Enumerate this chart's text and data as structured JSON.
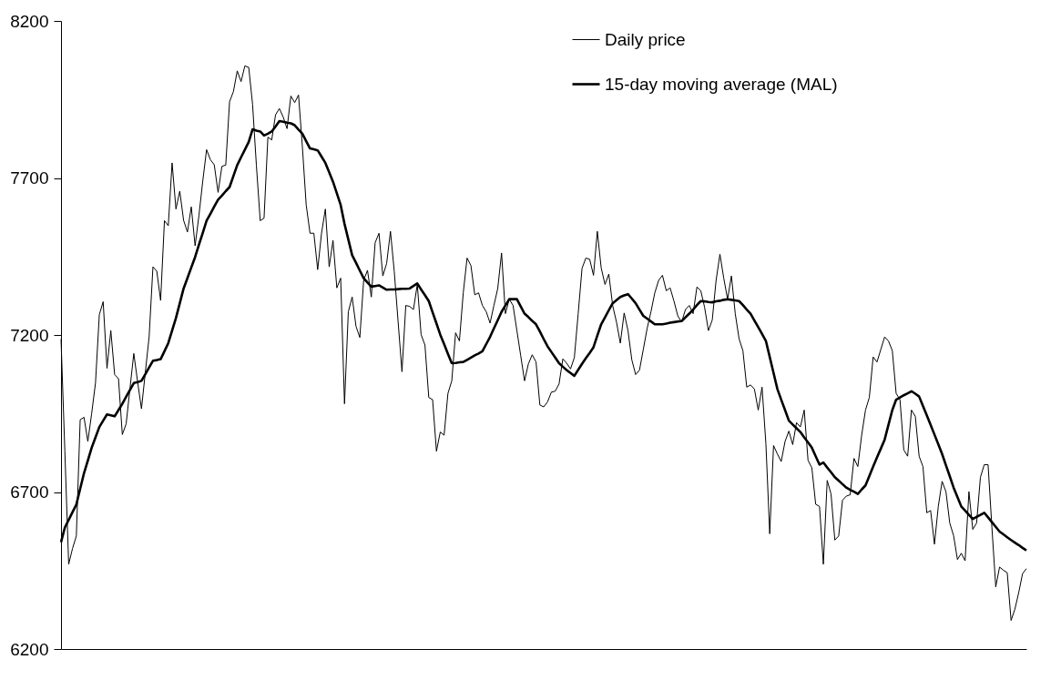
{
  "chart_data": {
    "type": "line",
    "categories": [
      null,
      null,
      null,
      null,
      null,
      null,
      null,
      null,
      null,
      null,
      null,
      null,
      null,
      null,
      null,
      null,
      null,
      null,
      null,
      null,
      null,
      null,
      null,
      null,
      null,
      null,
      null,
      null,
      null,
      null,
      null,
      null,
      null,
      null,
      null,
      null,
      null,
      null,
      null,
      null,
      null,
      null,
      null,
      null,
      null,
      null,
      null,
      null,
      null,
      null,
      null,
      null,
      null,
      null,
      null,
      null,
      null,
      null,
      null,
      null,
      null,
      null,
      null,
      null,
      null,
      null,
      null,
      null,
      null,
      null,
      null,
      null,
      null,
      null,
      null,
      null,
      null,
      null,
      null,
      null,
      null,
      null,
      null,
      null,
      null,
      null,
      null,
      null,
      null,
      null,
      null,
      null,
      null,
      null,
      null,
      null,
      null,
      null,
      null,
      null,
      null,
      null,
      null,
      null,
      null,
      null,
      null,
      null,
      null,
      null,
      null,
      null,
      null,
      null,
      null,
      null,
      null,
      null,
      null,
      null,
      null,
      null,
      null,
      null,
      null,
      null,
      null,
      null,
      null,
      null,
      null,
      null,
      null,
      null,
      null,
      null,
      null,
      null,
      null,
      null,
      null,
      null,
      null,
      null,
      null,
      null,
      null,
      null,
      null,
      null,
      null,
      null,
      null,
      null,
      null,
      null,
      null,
      null,
      null,
      null,
      null,
      null,
      null,
      null,
      null,
      null,
      null,
      null,
      null,
      null,
      null,
      null,
      null,
      null,
      null,
      null,
      null,
      null,
      null,
      null,
      null,
      null,
      null,
      null,
      null,
      null,
      null,
      null,
      null,
      null,
      null,
      null,
      null,
      null,
      null,
      null,
      null,
      null,
      null,
      null,
      null,
      null,
      null,
      null,
      null,
      null,
      null,
      null,
      null,
      null,
      null,
      null,
      null,
      null,
      null,
      null,
      null,
      null,
      null,
      null,
      null,
      null,
      null,
      null,
      null,
      null,
      null,
      null,
      null,
      null,
      null,
      null,
      null,
      null,
      null,
      null,
      null,
      null,
      null,
      null,
      null,
      null,
      null,
      null,
      null,
      null,
      null,
      null,
      null,
      null,
      null,
      null,
      null
    ],
    "ylim": [
      6200,
      8200
    ],
    "yticks": [
      6200,
      6700,
      7200,
      7700,
      8200
    ],
    "tick_labels": "y",
    "legend": "top right",
    "line_style": "solid",
    "series": [
      {
        "name": "Daily price",
        "color": "#000000",
        "values": [
          7187,
          6830,
          6470,
          6520,
          6560,
          6930,
          6938,
          6861,
          6950,
          7047,
          7265,
          7306,
          7094,
          7214,
          7074,
          7061,
          6883,
          6917,
          7030,
          7141,
          7050,
          6965,
          7080,
          7194,
          7417,
          7403,
          7310,
          7564,
          7548,
          7748,
          7601,
          7658,
          7565,
          7528,
          7608,
          7484,
          7580,
          7690,
          7790,
          7758,
          7742,
          7654,
          7737,
          7741,
          7943,
          7975,
          8041,
          8007,
          8057,
          8052,
          7935,
          7740,
          7564,
          7572,
          7830,
          7821,
          7901,
          7921,
          7894,
          7857,
          7961,
          7940,
          7964,
          7800,
          7614,
          7524,
          7524,
          7408,
          7524,
          7601,
          7417,
          7501,
          7350,
          7381,
          6981,
          7274,
          7321,
          7228,
          7192,
          7374,
          7406,
          7321,
          7494,
          7524,
          7388,
          7428,
          7530,
          7401,
          7241,
          7083,
          7294,
          7291,
          7281,
          7361,
          7201,
          7168,
          7001,
          6994,
          6830,
          6891,
          6881,
          7014,
          7054,
          7207,
          7181,
          7334,
          7445,
          7421,
          7328,
          7334,
          7294,
          7274,
          7238,
          7294,
          7348,
          7461,
          7268,
          7314,
          7294,
          7214,
          7134,
          7054,
          7108,
          7137,
          7114,
          6977,
          6971,
          6987,
          7018,
          7021,
          7044,
          7124,
          7110,
          7092,
          7128,
          7268,
          7412,
          7445,
          7441,
          7390,
          7530,
          7414,
          7361,
          7394,
          7294,
          7241,
          7174,
          7270,
          7214,
          7121,
          7074,
          7088,
          7154,
          7221,
          7274,
          7334,
          7374,
          7390,
          7341,
          7350,
          7308,
          7261,
          7241,
          7281,
          7294,
          7268,
          7353,
          7341,
          7288,
          7214,
          7248,
          7374,
          7457,
          7381,
          7314,
          7388,
          7268,
          7188,
          7150,
          7034,
          7041,
          7028,
          6961,
          7034,
          6854,
          6567,
          6848,
          6821,
          6797,
          6861,
          6894,
          6851,
          6921,
          6907,
          6961,
          6801,
          6777,
          6661,
          6654,
          6470,
          6737,
          6694,
          6547,
          6560,
          6674,
          6687,
          6691,
          6807,
          6781,
          6881,
          6961,
          7001,
          7130,
          7114,
          7154,
          7194,
          7181,
          7150,
          7014,
          6994,
          6834,
          6814,
          6961,
          6941,
          6814,
          6781,
          6634,
          6641,
          6534,
          6654,
          6734,
          6701,
          6601,
          6561,
          6485,
          6505,
          6481,
          6701,
          6581,
          6601,
          6747,
          6787,
          6787,
          6587,
          6398,
          6461,
          6451,
          6443,
          6291,
          6327,
          6380,
          6440,
          6456
        ]
      },
      {
        "name": "15-day moving average (MAL)",
        "color": "#000000",
        "values": [
          6540,
          6587,
          6611,
          6636,
          6660,
          6710,
          6760,
          6800,
          6841,
          6874,
          6907,
          6927,
          6947,
          6944,
          6941,
          6961,
          6981,
          7003,
          7025,
          7047,
          7050,
          7054,
          7075,
          7097,
          7118,
          7120,
          7123,
          7148,
          7174,
          7214,
          7254,
          7301,
          7348,
          7381,
          7415,
          7448,
          7487,
          7525,
          7564,
          7586,
          7609,
          7631,
          7644,
          7658,
          7671,
          7706,
          7741,
          7766,
          7790,
          7815,
          7855,
          7851,
          7848,
          7835,
          7841,
          7848,
          7864,
          7881,
          7879,
          7876,
          7874,
          7868,
          7854,
          7841,
          7817,
          7794,
          7791,
          7788,
          7768,
          7748,
          7718,
          7688,
          7651,
          7614,
          7554,
          7504,
          7454,
          7430,
          7405,
          7381,
          7367,
          7354,
          7356,
          7358,
          7351,
          7344,
          7345,
          7345,
          7346,
          7347,
          7347,
          7348,
          7356,
          7364,
          7345,
          7327,
          7308,
          7272,
          7237,
          7201,
          7171,
          7140,
          7110,
          7111,
          7113,
          7114,
          7121,
          7128,
          7135,
          7141,
          7148,
          7171,
          7194,
          7221,
          7247,
          7274,
          7294,
          7314,
          7314,
          7314,
          7291,
          7268,
          7257,
          7245,
          7234,
          7211,
          7187,
          7164,
          7146,
          7128,
          7110,
          7099,
          7088,
          7079,
          7070,
          7089,
          7108,
          7126,
          7143,
          7161,
          7198,
          7234,
          7256,
          7279,
          7301,
          7311,
          7321,
          7326,
          7330,
          7316,
          7301,
          7281,
          7261,
          7252,
          7243,
          7234,
          7234,
          7234,
          7236,
          7239,
          7241,
          7243,
          7244,
          7256,
          7268,
          7281,
          7295,
          7308,
          7307,
          7305,
          7304,
          7307,
          7309,
          7312,
          7314,
          7312,
          7310,
          7308,
          7295,
          7281,
          7268,
          7246,
          7225,
          7203,
          7181,
          7130,
          7079,
          7028,
          6994,
          6961,
          6927,
          6915,
          6903,
          6891,
          6874,
          6858,
          6841,
          6814,
          6787,
          6794,
          6778,
          6763,
          6747,
          6736,
          6725,
          6714,
          6707,
          6701,
          6694,
          6708,
          6721,
          6751,
          6781,
          6810,
          6838,
          6867,
          6914,
          6961,
          6994,
          7001,
          7008,
          7014,
          7021,
          7013,
          7004,
          6974,
          6944,
          6914,
          6883,
          6852,
          6821,
          6785,
          6750,
          6714,
          6684,
          6654,
          6641,
          6627,
          6614,
          6621,
          6627,
          6634,
          6619,
          6604,
          6589,
          6574,
          6565,
          6556,
          6547,
          6539,
          6531,
          6522,
          6514
        ]
      }
    ]
  }
}
